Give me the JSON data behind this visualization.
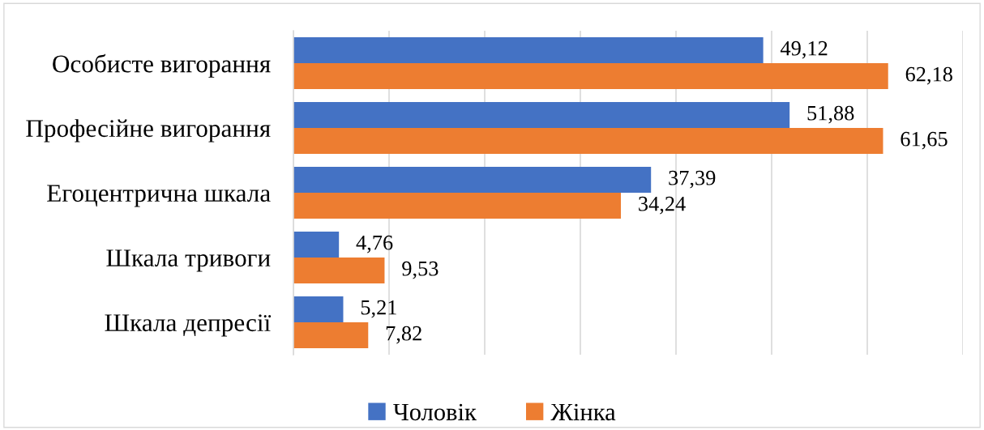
{
  "chart_data": {
    "type": "bar",
    "orientation": "horizontal",
    "categories": [
      "Особисте вигорання",
      "Професійне вигорання",
      "Егоцентрична шкала",
      "Шкала тривоги",
      "Шкала депресії"
    ],
    "series": [
      {
        "name": "Чоловік",
        "color": "#4472c4",
        "values": [
          49.12,
          51.88,
          37.39,
          4.76,
          5.21
        ],
        "value_labels": [
          "49,12",
          "51,88",
          "37,39",
          "4,76",
          "5,21"
        ]
      },
      {
        "name": "Жінка",
        "color": "#ed7d31",
        "values": [
          62.18,
          61.65,
          34.24,
          9.53,
          7.82
        ],
        "value_labels": [
          "62,18",
          "61,65",
          "34,24",
          "9,53",
          "7,82"
        ]
      }
    ],
    "xlim": [
      0,
      70
    ],
    "xticks": [
      {
        "value": 0,
        "label": null
      },
      {
        "value": 10,
        "label": null
      },
      {
        "value": 20,
        "label": null
      },
      {
        "value": 30,
        "label": null
      },
      {
        "value": 40,
        "label": null
      },
      {
        "value": 50,
        "label": null
      },
      {
        "value": 60,
        "label": null
      },
      {
        "value": 70,
        "label": null
      }
    ],
    "tick_labels": "y",
    "grid": "x",
    "legend": "bottom"
  }
}
